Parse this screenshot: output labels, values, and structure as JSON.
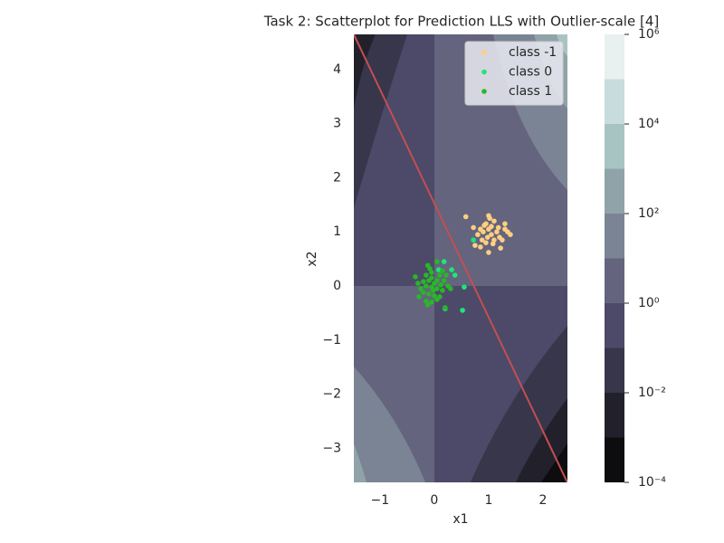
{
  "chart_data": {
    "type": "scatter",
    "title": "Task 2: Scatterplot for Prediction LLS with Outlier-scale [4]",
    "x_label": "x1",
    "y_label": "x2",
    "xlim": [
      -1.48,
      2.45
    ],
    "ylim": [
      -3.63,
      4.65
    ],
    "xticks": [
      {
        "value": -1,
        "label": "−1"
      },
      0,
      1,
      2
    ],
    "yticks": [
      {
        "value": -3,
        "label": "−3"
      },
      {
        "value": -2,
        "label": "−2"
      },
      {
        "value": -1,
        "label": "−1"
      },
      0,
      1,
      2,
      3,
      4
    ],
    "legend_position": "upper right",
    "decision_line": {
      "color": "#c44e52",
      "x": [
        -1.5,
        2.5
      ],
      "values": [
        4.69,
        -3.74
      ]
    },
    "series": [
      {
        "name": "class -1",
        "color": "#fdcf7f",
        "x": [
          1.0,
          1.02,
          0.95,
          1.1,
          1.3,
          0.58,
          0.72,
          0.85,
          0.9,
          1.0,
          1.05,
          1.15,
          1.2,
          1.35,
          1.4,
          0.8,
          0.88,
          0.95,
          1.1,
          1.25,
          0.75,
          0.85,
          1.0,
          1.22,
          1.05,
          0.92,
          1.18,
          0.98,
          1.08,
          1.3
        ],
        "values": [
          1.3,
          1.25,
          1.15,
          1.2,
          1.15,
          1.28,
          1.08,
          1.05,
          1.0,
          1.05,
          0.95,
          1.0,
          0.9,
          1.0,
          0.95,
          0.95,
          0.85,
          0.8,
          0.85,
          0.85,
          0.75,
          0.72,
          0.62,
          0.7,
          1.1,
          1.12,
          1.08,
          0.9,
          0.78,
          1.05
        ]
      },
      {
        "name": "class 0",
        "color": "#1de67a",
        "x": [
          0.18,
          0.32,
          0.38,
          0.72,
          0.55,
          0.08,
          0.52,
          0.2
        ],
        "values": [
          0.45,
          0.3,
          0.2,
          0.85,
          -0.02,
          0.3,
          -0.45,
          -0.42
        ]
      },
      {
        "name": "class 1",
        "color": "#2ab52a",
        "x": [
          -0.12,
          -0.08,
          -0.05,
          0.05,
          -0.15,
          -0.05,
          0.1,
          0.15,
          0.22,
          -0.35,
          -0.3,
          -0.2,
          -0.1,
          0.0,
          0.05,
          0.18,
          0.25,
          0.3,
          -0.25,
          -0.15,
          -0.05,
          0.05,
          0.15,
          -0.2,
          -0.1,
          0.0,
          0.1,
          -0.15,
          -0.05,
          0.05,
          -0.12,
          0.2,
          -0.28,
          -0.02,
          0.12
        ],
        "values": [
          0.38,
          0.32,
          0.25,
          0.45,
          0.2,
          0.15,
          0.2,
          0.28,
          0.2,
          0.17,
          0.05,
          0.08,
          0.1,
          0.05,
          0.1,
          0.1,
          0.0,
          -0.05,
          -0.05,
          0.0,
          -0.02,
          -0.05,
          -0.08,
          -0.12,
          -0.15,
          -0.18,
          -0.2,
          -0.28,
          -0.3,
          -0.25,
          -0.35,
          -0.4,
          -0.2,
          -0.08,
          0.02
        ]
      }
    ],
    "colorbar": {
      "scale": "log",
      "levels": [
        0.0001,
        0.001,
        0.01,
        0.1,
        1,
        10,
        100,
        1000,
        10000,
        100000,
        1000000
      ],
      "colors": [
        "#0d0d10",
        "#22212b",
        "#37364a",
        "#4c4a68",
        "#64647e",
        "#7b8494",
        "#8fa3a8",
        "#a8c4c2",
        "#c8dcdc",
        "#e8f0f0"
      ],
      "ticks": [
        {
          "value": 0.0001,
          "label": "10⁻⁴"
        },
        {
          "value": 0.01,
          "label": "10⁻²"
        },
        {
          "value": 1,
          "label": "10⁰"
        },
        {
          "value": 100,
          "label": "10²"
        },
        {
          "value": 10000,
          "label": "10⁴"
        },
        {
          "value": 1000000,
          "label": "10⁶"
        }
      ]
    }
  }
}
